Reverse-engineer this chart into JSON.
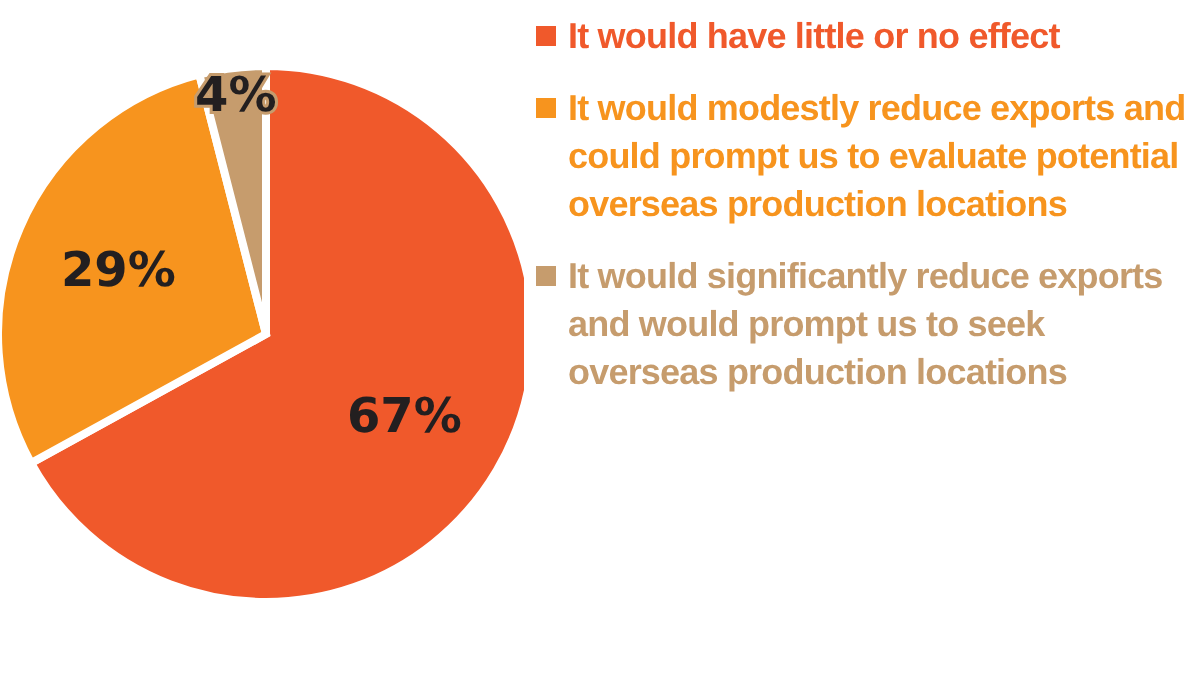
{
  "chart_data": {
    "type": "pie",
    "categories": [
      "It would have little or no effect",
      "It would modestly reduce exports and could prompt us to evaluate potential overseas production locations",
      "It would significantly reduce exports and would prompt us to seek overseas production locations"
    ],
    "values": [
      67,
      29,
      4
    ],
    "colors": [
      "#f0592b",
      "#f7941e",
      "#c69c6d"
    ],
    "value_labels": [
      "67%",
      "29%",
      "4%"
    ],
    "legend": "right"
  }
}
